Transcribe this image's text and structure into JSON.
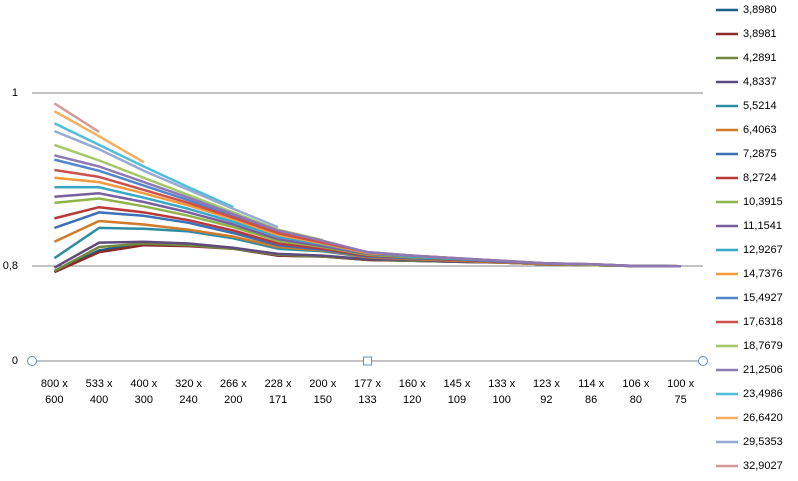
{
  "chart_data": {
    "type": "line",
    "categories": [
      "800 x 600",
      "533 x 400",
      "400 x 300",
      "320 x 240",
      "266 x 200",
      "228 x 171",
      "200 x 150",
      "177 x 133",
      "160 x 120",
      "145 x 109",
      "133 x 100",
      "123 x 92",
      "114 x 86",
      "106 x 80",
      "100 x 75"
    ],
    "yticks": [
      0,
      {
        "value": 0.8,
        "label": "0,8"
      },
      1
    ],
    "grid": true,
    "legend": "right",
    "series": [
      {
        "name": "3,8980",
        "color": "#1f5f8b",
        "values": [
          0.749,
          0.818,
          0.826,
          0.825,
          0.82,
          0.812,
          0.811,
          0.807,
          0.806,
          0.805,
          0.804,
          0.802,
          0.801,
          0.8,
          0.798
        ]
      },
      {
        "name": "3,8981",
        "color": "#8b2c2a",
        "values": [
          0.749,
          0.816,
          0.824,
          0.823,
          0.82,
          0.812,
          0.811,
          0.807,
          0.806,
          0.805,
          0.804,
          0.802,
          0.801,
          0.8,
          0.798
        ]
      },
      {
        "name": "4,2891",
        "color": "#71893f",
        "values": [
          0.758,
          0.822,
          0.826,
          0.824,
          0.82,
          0.813,
          0.811,
          0.808,
          0.806,
          0.805,
          0.804,
          0.802,
          0.801,
          0.8,
          0.798
        ]
      },
      {
        "name": "4,8337",
        "color": "#5f4a7e",
        "values": [
          0.786,
          0.827,
          0.828,
          0.826,
          0.821,
          0.814,
          0.812,
          0.808,
          0.807,
          0.805,
          0.804,
          0.802,
          0.801,
          0.8,
          0.798
        ]
      },
      {
        "name": "5,5214",
        "color": "#2c8ca3",
        "values": [
          0.809,
          0.844,
          0.843,
          0.84,
          0.832,
          0.82,
          0.817,
          0.81,
          0.808,
          0.806,
          0.804,
          0.802,
          0.801,
          0.8,
          0.798
        ]
      },
      {
        "name": "6,4063",
        "color": "#d17b2a",
        "values": [
          0.828,
          0.852,
          0.848,
          0.842,
          0.834,
          0.822,
          0.818,
          0.81,
          0.808,
          0.806,
          0.804,
          0.802,
          0.801,
          0.8,
          0.798
        ]
      },
      {
        "name": "7,2875",
        "color": "#3b70b8",
        "values": [
          0.844,
          0.862,
          0.858,
          0.85,
          0.838,
          0.824,
          0.819,
          0.811,
          0.809,
          0.807,
          0.805,
          0.803,
          0.801,
          0.8,
          0.798
        ]
      },
      {
        "name": "8,2724",
        "color": "#b83a38",
        "values": [
          0.855,
          0.868,
          0.862,
          0.853,
          0.841,
          0.826,
          0.82,
          0.812,
          0.81,
          0.807,
          0.805,
          0.803,
          0.801,
          0.8,
          0.798
        ]
      },
      {
        "name": "10,3915",
        "color": "#8eb44a",
        "values": [
          0.873,
          0.878,
          0.869,
          0.858,
          0.845,
          0.829,
          0.822,
          0.813,
          0.81,
          0.808,
          0.805,
          0.803,
          0.801,
          0.8,
          0.798
        ]
      },
      {
        "name": "11,1541",
        "color": "#7860a0",
        "values": [
          0.88,
          0.884,
          0.874,
          0.862,
          0.848,
          0.831,
          0.823,
          0.814,
          0.811,
          0.808,
          0.805,
          0.803,
          0.802,
          0.8,
          0.798
        ]
      },
      {
        "name": "12,9267",
        "color": "#37a8c8",
        "values": [
          0.891,
          0.891,
          0.879,
          0.866,
          0.851,
          0.834,
          0.825,
          0.815,
          0.811,
          0.808,
          0.806,
          0.803,
          0.802,
          0.8,
          0.798
        ]
      },
      {
        "name": "14,7376",
        "color": "#f59b3d",
        "values": [
          0.902,
          0.897,
          0.884,
          0.87,
          0.854,
          0.836,
          0.826,
          0.815,
          0.812,
          0.809,
          null,
          null,
          null,
          null,
          null
        ]
      },
      {
        "name": "15,4927",
        "color": "#4f86cc",
        "values": [
          0.923,
          0.91,
          0.893,
          0.876,
          0.858,
          0.839,
          0.828,
          0.816,
          0.812,
          null,
          null,
          null,
          null,
          null,
          null
        ]
      },
      {
        "name": "17,6318",
        "color": "#cd504c",
        "values": [
          0.911,
          0.903,
          0.888,
          0.873,
          0.856,
          0.838,
          0.827,
          0.816,
          0.812,
          0.809,
          0.806,
          0.803,
          0.802,
          0.8,
          0.798
        ]
      },
      {
        "name": "18,7679",
        "color": "#a5c866",
        "values": [
          0.94,
          0.922,
          0.902,
          0.882,
          0.862,
          0.842,
          0.83,
          null,
          null,
          null,
          null,
          null,
          null,
          null,
          null
        ]
      },
      {
        "name": "21,2506",
        "color": "#8e79b4",
        "values": [
          0.928,
          0.915,
          0.897,
          0.879,
          0.86,
          0.841,
          0.829,
          0.816,
          0.812,
          0.809,
          0.806,
          0.803,
          0.802,
          0.8,
          0.798
        ]
      },
      {
        "name": "23,4986",
        "color": "#4fbedc",
        "values": [
          0.965,
          0.94,
          0.915,
          0.891,
          0.868,
          null,
          null,
          null,
          null,
          null,
          null,
          null,
          null,
          null,
          null
        ]
      },
      {
        "name": "26,6420",
        "color": "#f8ae5e",
        "values": [
          0.979,
          0.95,
          0.92,
          null,
          null,
          null,
          null,
          null,
          null,
          null,
          null,
          null,
          null,
          null,
          null
        ]
      },
      {
        "name": "29,5353",
        "color": "#96abd1",
        "values": [
          0.956,
          0.935,
          0.91,
          0.888,
          0.866,
          0.845,
          null,
          null,
          null,
          null,
          null,
          null,
          null,
          null,
          null
        ]
      },
      {
        "name": "32,9027",
        "color": "#d49a9a",
        "values": [
          0.988,
          0.955,
          null,
          null,
          null,
          null,
          null,
          null,
          null,
          null,
          null,
          null,
          null,
          null,
          null
        ]
      }
    ]
  }
}
